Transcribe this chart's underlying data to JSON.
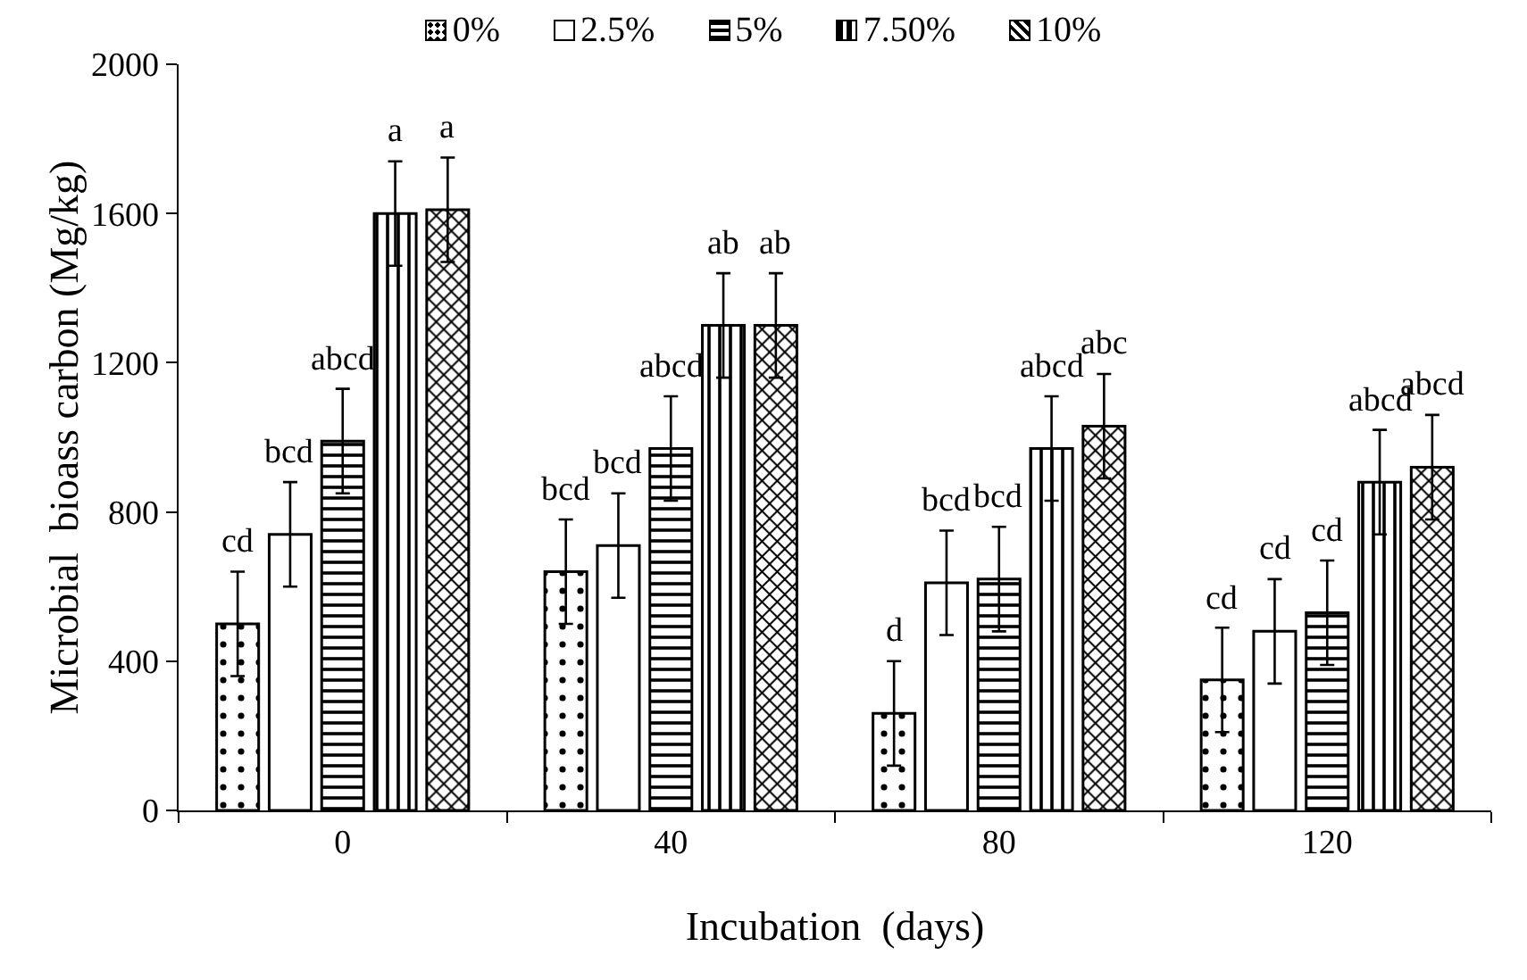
{
  "chart_data": {
    "type": "bar",
    "xlabel": "Incubation  (days)",
    "ylabel": "Microbial  bioass carbon (Mg/kg)",
    "categories": [
      "0",
      "40",
      "80",
      "120"
    ],
    "series": [
      {
        "name": "0%",
        "color": "#000000",
        "values": [
          500,
          640,
          260,
          350
        ],
        "errors": [
          140,
          140,
          140,
          140
        ]
      },
      {
        "name": "2.5%",
        "color": "#ffffff",
        "values": [
          740,
          710,
          610,
          480
        ],
        "errors": [
          140,
          140,
          140,
          140
        ]
      },
      {
        "name": "5%",
        "color": "#000000",
        "values": [
          990,
          970,
          620,
          530
        ],
        "errors": [
          140,
          140,
          140,
          140
        ]
      },
      {
        "name": "7.50%",
        "color": "#000000",
        "values": [
          1600,
          1300,
          970,
          880
        ],
        "errors": [
          140,
          140,
          140,
          140
        ]
      },
      {
        "name": "10%",
        "color": "#000000",
        "values": [
          1610,
          1300,
          1030,
          920
        ],
        "errors": [
          140,
          140,
          140,
          140
        ]
      }
    ],
    "ylim": [
      0,
      2000
    ],
    "yticks": [
      0,
      400,
      800,
      1200,
      1600,
      2000
    ],
    "grid": false,
    "legend": "top",
    "annotations": [
      "cd",
      "bcd",
      "abcd",
      "a",
      "a",
      "bcd",
      "bcd",
      "abcd",
      "ab",
      "ab",
      "d",
      "bcd",
      "bcd",
      "abcd",
      "abc",
      "cd",
      "cd",
      "cd",
      "abcd",
      "abcd"
    ]
  }
}
